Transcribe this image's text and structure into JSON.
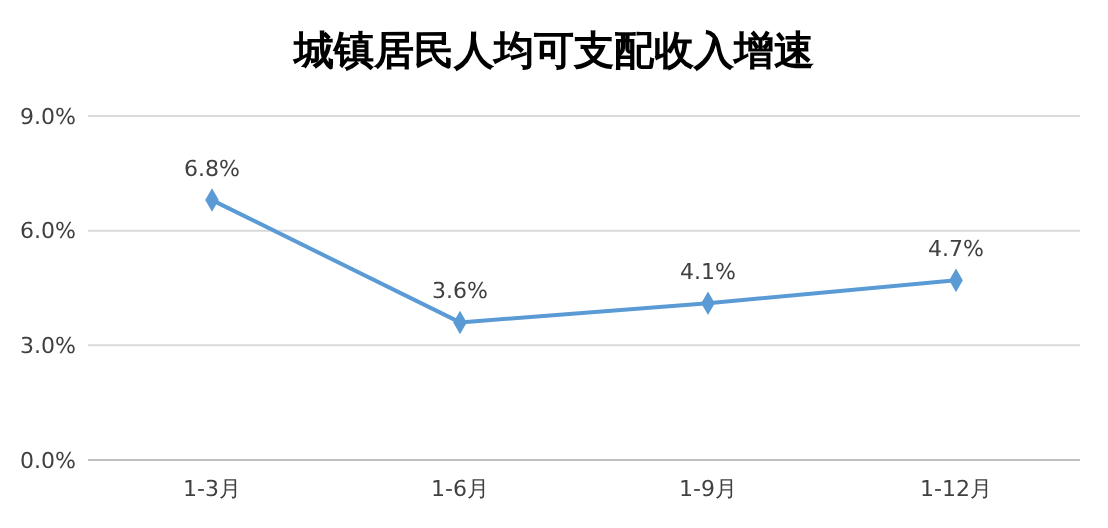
{
  "chart_data": {
    "type": "line",
    "title": "城镇居民人均可支配收入增速",
    "categories": [
      "1-3月",
      "1-6月",
      "1-9月",
      "1-12月"
    ],
    "series": [
      {
        "color": "#5b9bd5",
        "values": [
          6.8,
          3.6,
          4.1,
          4.7
        ],
        "value_labels": [
          "6.8%",
          "3.6%",
          "4.1%",
          "4.7%"
        ]
      }
    ],
    "ylim": [
      0,
      9
    ],
    "yticks": [
      {
        "value": 0,
        "label": "0.0%"
      },
      {
        "value": 3,
        "label": "3.0%"
      },
      {
        "value": 6,
        "label": "6.0%"
      },
      {
        "value": 9,
        "label": "9.0%"
      }
    ],
    "grid": "y",
    "marker": "diamond"
  }
}
